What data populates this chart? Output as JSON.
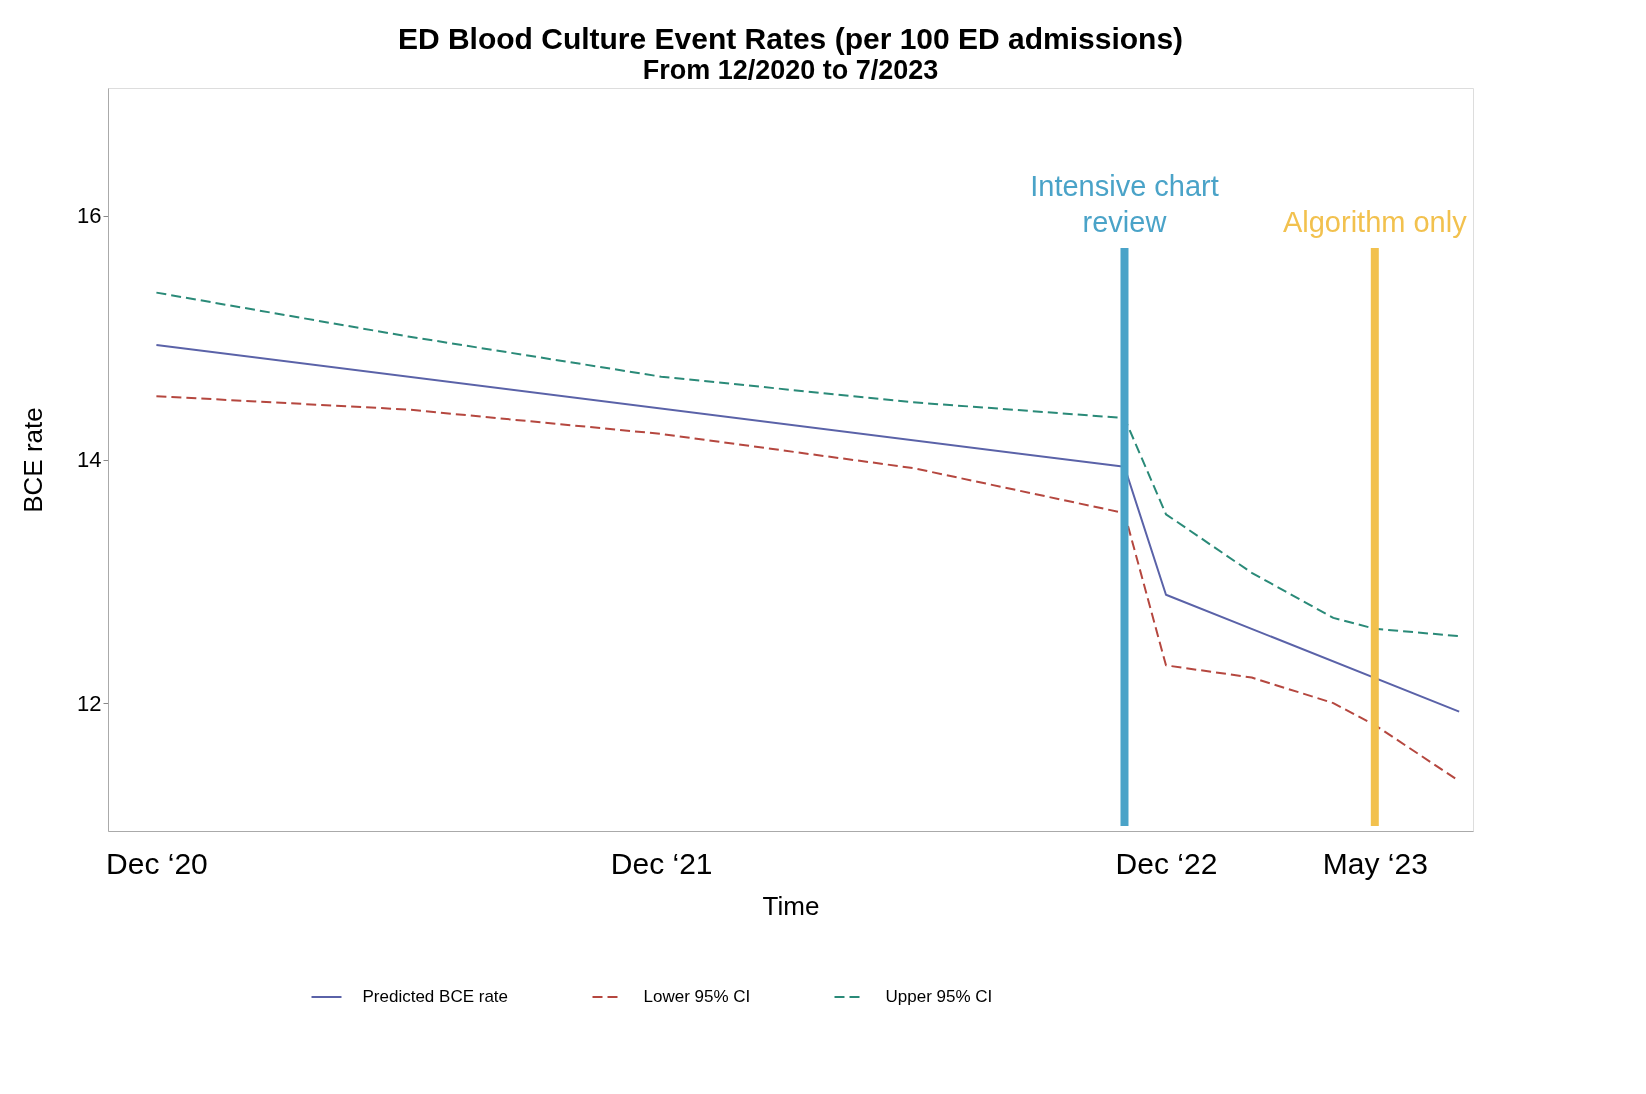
{
  "chart_data": {
    "type": "line",
    "title": "ED  Blood Culture Event Rates (per 100 ED admissions)",
    "subtitle": "From 12/2020 to 7/2023",
    "xlabel": "Time",
    "ylabel": "BCE rate",
    "series": [
      {
        "name": "Predicted BCE rate",
        "color": "#5a62a8",
        "line_style": "solid",
        "x": [
          "2020-12",
          "2022-11",
          "2022-12",
          "2023-07"
        ],
        "values": [
          14.94,
          13.94,
          12.89,
          11.93
        ]
      },
      {
        "name": "Lower 95% CI",
        "color": "#b5473f",
        "line_style": "dashed",
        "x": [
          "2020-12",
          "2021-06",
          "2021-12",
          "2022-06",
          "2022-11",
          "2022-12",
          "2023-02",
          "2023-04",
          "2023-05",
          "2023-07"
        ],
        "values": [
          14.52,
          14.41,
          14.21,
          13.93,
          13.56,
          12.31,
          12.21,
          12.0,
          11.82,
          11.36
        ]
      },
      {
        "name": "Upper 95% CI",
        "color": "#2a8a78",
        "line_style": "dashed",
        "x": [
          "2020-12",
          "2021-06",
          "2021-12",
          "2022-06",
          "2022-11",
          "2022-12",
          "2023-02",
          "2023-04",
          "2023-05",
          "2023-07"
        ],
        "values": [
          15.37,
          15.01,
          14.68,
          14.47,
          14.34,
          13.55,
          13.07,
          12.7,
          12.61,
          12.55
        ]
      }
    ],
    "xlim": [
      "2020-10-27",
      "2023-07-11"
    ],
    "ylim": [
      10.95,
      17.05
    ],
    "xticks": [
      {
        "value": "2020-12",
        "label": "Dec ‘20"
      },
      {
        "value": "2021-12",
        "label": "Dec ‘21"
      },
      {
        "value": "2022-12",
        "label": "Dec ‘22"
      },
      {
        "value": "2023-05",
        "label": "May ‘23"
      }
    ],
    "yticks": [
      12,
      14,
      16
    ],
    "ref_lines": [
      {
        "axis": "x",
        "value": "2022-11",
        "label": "Intensive chart review",
        "color": "#4aa3c8"
      },
      {
        "axis": "x",
        "value": "2023-05",
        "label": "Algorithm only",
        "color": "#f2c14e"
      }
    ],
    "grid": false,
    "legend": "bottom"
  }
}
